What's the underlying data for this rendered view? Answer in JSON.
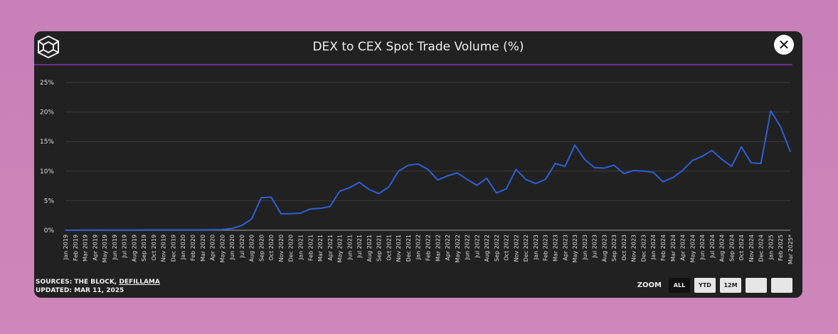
{
  "header": {
    "title": "DEX to CEX Spot Trade Volume (%)",
    "close_icon": "close-icon",
    "logo": "the-block-logo"
  },
  "footer": {
    "sources_prefix": "SOURCES: THE BLOCK, ",
    "sources_link": "DEFILLAMA",
    "updated": "UPDATED: MAR 11, 2025"
  },
  "zoom": {
    "label": "ZOOM",
    "buttons": [
      "ALL",
      "YTD",
      "12M",
      "",
      ""
    ],
    "active": "ALL"
  },
  "colors": {
    "line": "#2f5fd8",
    "divider": "#6a2c8c",
    "background": "#212121"
  },
  "chart_data": {
    "type": "line",
    "title": "DEX to CEX Spot Trade Volume (%)",
    "xlabel": "",
    "ylabel": "",
    "ylim": [
      0,
      25
    ],
    "yticks": [
      "0%",
      "5%",
      "10%",
      "15%",
      "20%",
      "25%"
    ],
    "grid": true,
    "categories": [
      "Jan 2019",
      "Feb 2019",
      "Mar 2019",
      "Apr 2019",
      "May 2019",
      "Jun 2019",
      "Jul 2019",
      "Aug 2019",
      "Sep 2019",
      "Oct 2019",
      "Nov 2019",
      "Dec 2019",
      "Jan 2020",
      "Feb 2020",
      "Mar 2020",
      "Apr 2020",
      "May 2020",
      "Jun 2020",
      "Jul 2020",
      "Aug 2020",
      "Sep 2020",
      "Oct 2020",
      "Nov 2020",
      "Dec 2020",
      "Jan 2021",
      "Feb 2021",
      "Mar 2021",
      "Apr 2021",
      "May 2021",
      "Jun 2021",
      "Jul 2021",
      "Aug 2021",
      "Sep 2021",
      "Oct 2021",
      "Nov 2021",
      "Dec 2021",
      "Jan 2022",
      "Feb 2022",
      "Mar 2022",
      "Apr 2022",
      "May 2022",
      "Jun 2022",
      "Jul 2022",
      "Aug 2022",
      "Sep 2022",
      "Oct 2022",
      "Nov 2022",
      "Dec 2022",
      "Jan 2023",
      "Feb 2023",
      "Mar 2023",
      "Apr 2023",
      "May 2023",
      "Jun 2023",
      "Jul 2023",
      "Aug 2023",
      "Sep 2023",
      "Oct 2023",
      "Nov 2023",
      "Dec 2023",
      "Jan 2024",
      "Feb 2024",
      "Mar 2024",
      "Apr 2024",
      "May 2024",
      "Jun 2024",
      "Jul 2024",
      "Aug 2024",
      "Sep 2024",
      "Oct 2024",
      "Nov 2024",
      "Dec 2024",
      "Jan 2025",
      "Feb 2025",
      "Mar 2025*"
    ],
    "values": [
      0.02,
      0.02,
      0.03,
      0.03,
      0.03,
      0.03,
      0.03,
      0.03,
      0.04,
      0.04,
      0.05,
      0.05,
      0.05,
      0.05,
      0.06,
      0.07,
      0.1,
      0.3,
      0.8,
      1.9,
      5.5,
      5.6,
      2.8,
      2.8,
      2.9,
      3.6,
      3.7,
      4.0,
      6.6,
      7.2,
      8.1,
      6.9,
      6.2,
      7.3,
      10.0,
      11.0,
      11.2,
      10.3,
      8.5,
      9.2,
      9.7,
      8.6,
      7.6,
      8.8,
      6.3,
      7.0,
      10.3,
      8.6,
      7.9,
      8.6,
      11.3,
      10.8,
      14.4,
      12.0,
      10.6,
      10.5,
      11.0,
      9.6,
      10.1,
      10.0,
      9.8,
      8.2,
      8.9,
      10.1,
      11.8,
      12.5,
      13.5,
      12.0,
      10.8,
      14.1,
      11.4,
      11.3,
      20.2,
      17.5,
      13.3
    ]
  }
}
